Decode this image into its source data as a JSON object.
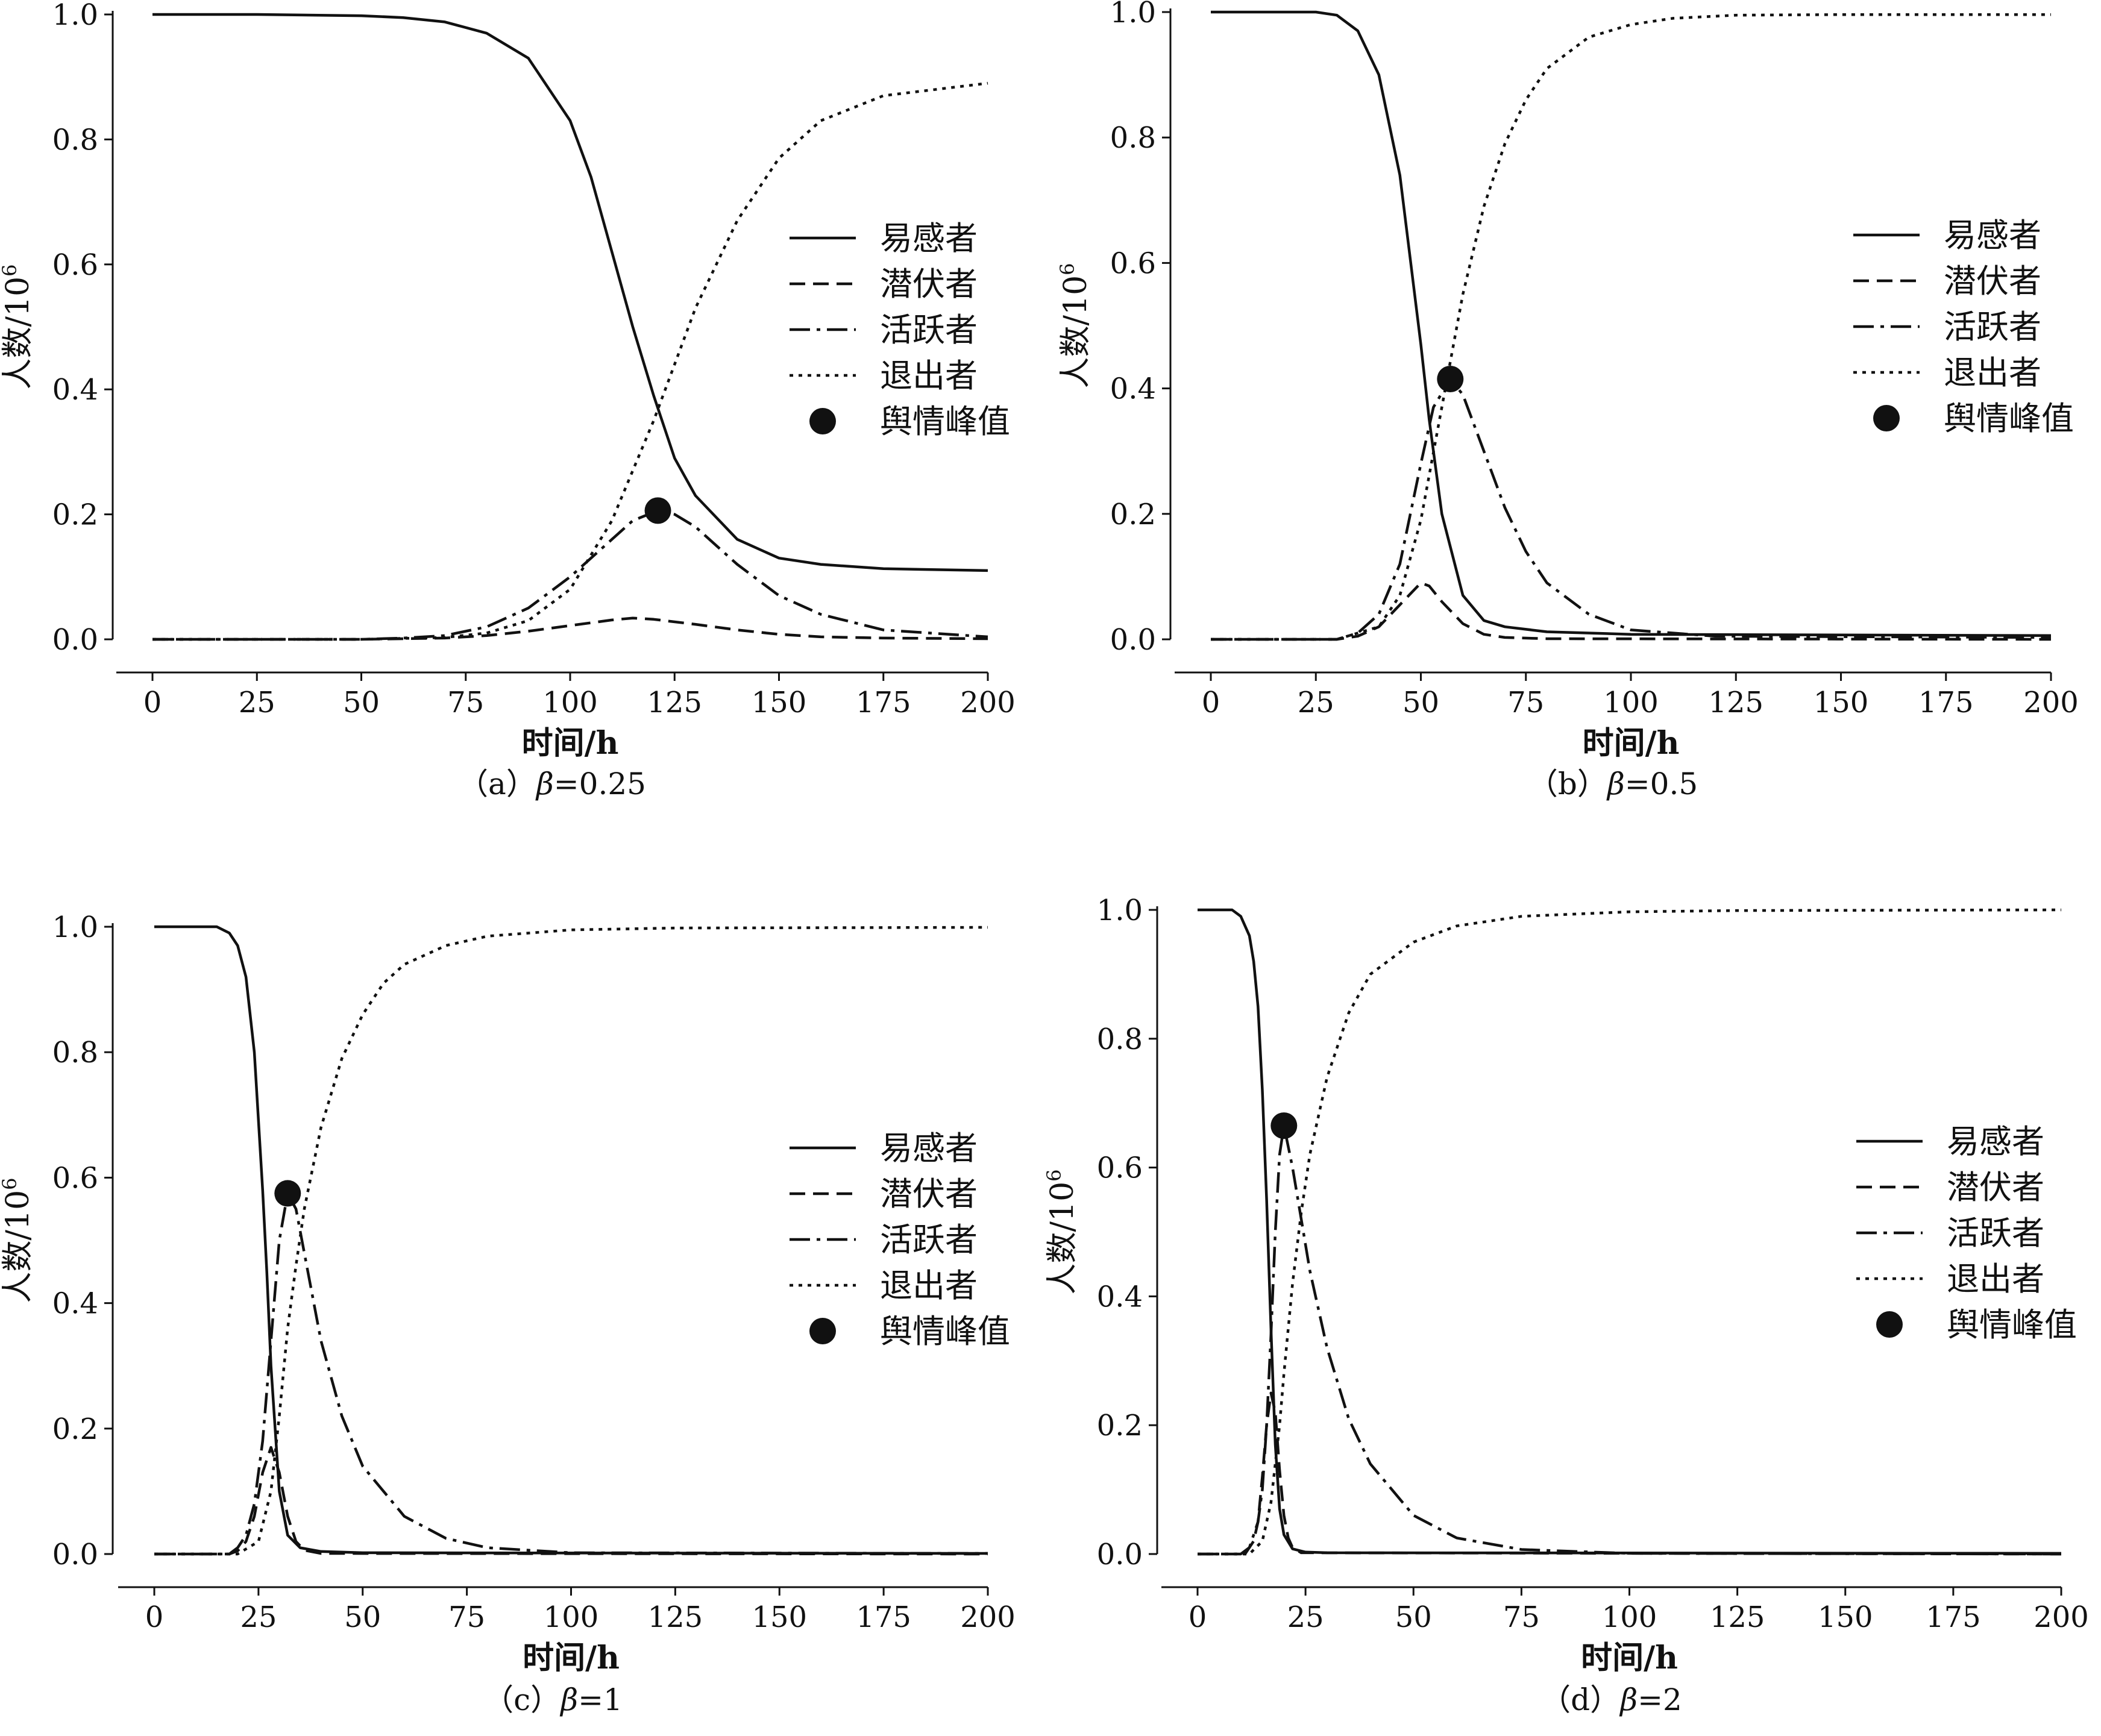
{
  "chart_data": [
    {
      "type": "line",
      "caption": {
        "prefix": "（a）",
        "symbol": "β",
        "value": "=0.25"
      },
      "xlabel": "时间/h",
      "ylabel": "人数/10",
      "ylabel_sup": "6",
      "xlim": [
        0,
        200
      ],
      "ylim": [
        0,
        1.0
      ],
      "xticks": [
        "0",
        "25",
        "50",
        "75",
        "100",
        "125",
        "150",
        "175",
        "200"
      ],
      "yticks": [
        "0.0",
        "0.2",
        "0.4",
        "0.6",
        "0.8",
        "1.0"
      ],
      "legend_position": "right",
      "series": [
        {
          "name": "易感者",
          "style": "solid",
          "x": [
            0,
            25,
            50,
            60,
            70,
            80,
            90,
            100,
            105,
            110,
            115,
            120,
            125,
            130,
            140,
            150,
            160,
            175,
            200
          ],
          "y": [
            1.0,
            1.0,
            0.998,
            0.995,
            0.988,
            0.97,
            0.93,
            0.83,
            0.74,
            0.62,
            0.5,
            0.39,
            0.29,
            0.23,
            0.16,
            0.13,
            0.12,
            0.113,
            0.11
          ]
        },
        {
          "name": "潜伏者",
          "style": "dashed",
          "x": [
            0,
            50,
            70,
            80,
            90,
            100,
            110,
            115,
            120,
            130,
            140,
            150,
            160,
            175,
            200
          ],
          "y": [
            0.0,
            0.0,
            0.002,
            0.006,
            0.013,
            0.022,
            0.031,
            0.034,
            0.032,
            0.024,
            0.015,
            0.008,
            0.004,
            0.002,
            0.001
          ]
        },
        {
          "name": "活跃者",
          "style": "dashdot",
          "x": [
            0,
            50,
            60,
            70,
            80,
            90,
            100,
            110,
            115,
            121,
            125,
            130,
            140,
            150,
            160,
            175,
            200
          ],
          "y": [
            0.0,
            0.0,
            0.002,
            0.006,
            0.02,
            0.05,
            0.1,
            0.16,
            0.19,
            0.206,
            0.2,
            0.18,
            0.12,
            0.07,
            0.04,
            0.015,
            0.004
          ]
        },
        {
          "name": "退出者",
          "style": "dotted",
          "x": [
            0,
            50,
            70,
            80,
            90,
            100,
            110,
            115,
            120,
            125,
            130,
            140,
            150,
            160,
            175,
            200
          ],
          "y": [
            0.0,
            0.0,
            0.003,
            0.01,
            0.03,
            0.08,
            0.19,
            0.27,
            0.35,
            0.44,
            0.53,
            0.67,
            0.77,
            0.83,
            0.87,
            0.89
          ]
        }
      ],
      "peak": {
        "name": "舆情峰值",
        "x": 121,
        "y": 0.206
      }
    },
    {
      "type": "line",
      "caption": {
        "prefix": "（b）",
        "symbol": "β",
        "value": "=0.5"
      },
      "xlabel": "时间/h",
      "ylabel": "人数/10",
      "ylabel_sup": "6",
      "xlim": [
        0,
        200
      ],
      "ylim": [
        0,
        1.0
      ],
      "xticks": [
        "0",
        "25",
        "50",
        "75",
        "100",
        "125",
        "150",
        "175",
        "200"
      ],
      "yticks": [
        "0.0",
        "0.2",
        "0.4",
        "0.6",
        "0.8",
        "1.0"
      ],
      "legend_position": "right",
      "series": [
        {
          "name": "易感者",
          "style": "solid",
          "x": [
            0,
            25,
            30,
            35,
            40,
            45,
            50,
            52,
            55,
            60,
            65,
            70,
            80,
            100,
            200
          ],
          "y": [
            1.0,
            1.0,
            0.995,
            0.97,
            0.9,
            0.74,
            0.47,
            0.35,
            0.2,
            0.07,
            0.03,
            0.02,
            0.012,
            0.008,
            0.006
          ]
        },
        {
          "name": "潜伏者",
          "style": "dashed",
          "x": [
            0,
            30,
            35,
            40,
            45,
            50,
            52,
            55,
            60,
            65,
            70,
            80,
            200
          ],
          "y": [
            0.0,
            0.0,
            0.005,
            0.02,
            0.055,
            0.09,
            0.085,
            0.06,
            0.025,
            0.008,
            0.003,
            0.001,
            0.0
          ]
        },
        {
          "name": "活跃者",
          "style": "dashdot",
          "x": [
            0,
            30,
            35,
            40,
            45,
            50,
            53,
            57,
            60,
            65,
            70,
            75,
            80,
            90,
            100,
            120,
            200
          ],
          "y": [
            0.0,
            0.0,
            0.01,
            0.04,
            0.12,
            0.28,
            0.37,
            0.415,
            0.39,
            0.3,
            0.21,
            0.14,
            0.09,
            0.04,
            0.015,
            0.005,
            0.003
          ]
        },
        {
          "name": "退出者",
          "style": "dotted",
          "x": [
            0,
            30,
            40,
            45,
            50,
            55,
            60,
            65,
            70,
            75,
            80,
            90,
            100,
            110,
            125,
            150,
            200
          ],
          "y": [
            0.0,
            0.0,
            0.02,
            0.07,
            0.19,
            0.37,
            0.55,
            0.69,
            0.79,
            0.86,
            0.91,
            0.96,
            0.98,
            0.99,
            0.995,
            0.996,
            0.996
          ]
        }
      ],
      "peak": {
        "name": "舆情峰值",
        "x": 57,
        "y": 0.415
      }
    },
    {
      "type": "line",
      "caption": {
        "prefix": "（c）",
        "symbol": "β",
        "value": "=1"
      },
      "xlabel": "时间/h",
      "ylabel": "人数/10",
      "ylabel_sup": "6",
      "xlim": [
        0,
        200
      ],
      "ylim": [
        0,
        1.0
      ],
      "xticks": [
        "0",
        "25",
        "50",
        "75",
        "100",
        "125",
        "150",
        "175",
        "200"
      ],
      "yticks": [
        "0.0",
        "0.2",
        "0.4",
        "0.6",
        "0.8",
        "1.0"
      ],
      "legend_position": "right",
      "series": [
        {
          "name": "易感者",
          "style": "solid",
          "x": [
            0,
            15,
            18,
            20,
            22,
            24,
            26,
            27,
            28,
            30,
            32,
            35,
            40,
            50,
            200
          ],
          "y": [
            1.0,
            1.0,
            0.99,
            0.97,
            0.92,
            0.8,
            0.58,
            0.45,
            0.3,
            0.1,
            0.03,
            0.01,
            0.004,
            0.002,
            0.001
          ]
        },
        {
          "name": "潜伏者",
          "style": "dashed",
          "x": [
            0,
            18,
            20,
            22,
            24,
            26,
            28,
            30,
            32,
            34,
            36,
            40,
            200
          ],
          "y": [
            0.0,
            0.0,
            0.005,
            0.02,
            0.06,
            0.13,
            0.17,
            0.13,
            0.06,
            0.02,
            0.006,
            0.001,
            0.0
          ]
        },
        {
          "name": "活跃者",
          "style": "dashdot",
          "x": [
            0,
            18,
            20,
            22,
            24,
            26,
            28,
            30,
            32,
            34,
            36,
            40,
            45,
            50,
            60,
            70,
            80,
            100,
            200
          ],
          "y": [
            0.0,
            0.0,
            0.01,
            0.03,
            0.08,
            0.18,
            0.34,
            0.5,
            0.575,
            0.55,
            0.48,
            0.34,
            0.22,
            0.14,
            0.06,
            0.025,
            0.01,
            0.002,
            0.001
          ]
        },
        {
          "name": "退出者",
          "style": "dotted",
          "x": [
            0,
            20,
            25,
            28,
            30,
            32,
            34,
            36,
            40,
            45,
            50,
            55,
            60,
            70,
            80,
            100,
            125,
            200
          ],
          "y": [
            0.0,
            0.0,
            0.02,
            0.1,
            0.22,
            0.36,
            0.46,
            0.55,
            0.68,
            0.79,
            0.86,
            0.91,
            0.94,
            0.97,
            0.985,
            0.995,
            0.998,
            0.999
          ]
        }
      ],
      "peak": {
        "name": "舆情峰值",
        "x": 32,
        "y": 0.575
      }
    },
    {
      "type": "line",
      "caption": {
        "prefix": "（d）",
        "symbol": "β",
        "value": "=2"
      },
      "xlabel": "时间/h",
      "ylabel": "人数/10",
      "ylabel_sup": "6",
      "xlim": [
        0,
        200
      ],
      "ylim": [
        0,
        1.0
      ],
      "xticks": [
        "0",
        "25",
        "50",
        "75",
        "100",
        "125",
        "150",
        "175",
        "200"
      ],
      "yticks": [
        "0.0",
        "0.2",
        "0.4",
        "0.6",
        "0.8",
        "1.0"
      ],
      "legend_position": "right",
      "series": [
        {
          "name": "易感者",
          "style": "solid",
          "x": [
            0,
            8,
            10,
            12,
            13,
            14,
            15,
            16,
            17,
            18,
            19,
            20,
            22,
            25,
            30,
            200
          ],
          "y": [
            1.0,
            1.0,
            0.99,
            0.96,
            0.92,
            0.85,
            0.72,
            0.55,
            0.35,
            0.17,
            0.07,
            0.03,
            0.008,
            0.003,
            0.002,
            0.001
          ]
        },
        {
          "name": "潜伏者",
          "style": "dashed",
          "x": [
            0,
            11,
            13,
            14,
            15,
            16,
            17,
            18,
            19,
            20,
            21,
            22,
            24,
            200
          ],
          "y": [
            0.0,
            0.0,
            0.02,
            0.05,
            0.12,
            0.2,
            0.25,
            0.22,
            0.13,
            0.06,
            0.025,
            0.01,
            0.002,
            0.0
          ]
        },
        {
          "name": "活跃者",
          "style": "dashdot",
          "x": [
            0,
            10,
            12,
            14,
            15,
            16,
            17,
            18,
            19,
            20,
            22,
            24,
            26,
            30,
            35,
            40,
            50,
            60,
            75,
            100,
            200
          ],
          "y": [
            0.0,
            0.0,
            0.01,
            0.05,
            0.1,
            0.2,
            0.34,
            0.5,
            0.62,
            0.665,
            0.6,
            0.52,
            0.44,
            0.32,
            0.21,
            0.14,
            0.06,
            0.025,
            0.007,
            0.001,
            0.0
          ]
        },
        {
          "name": "退出者",
          "style": "dotted",
          "x": [
            0,
            12,
            15,
            17,
            19,
            20,
            22,
            24,
            26,
            30,
            35,
            40,
            50,
            60,
            75,
            100,
            125,
            200
          ],
          "y": [
            0.0,
            0.0,
            0.02,
            0.08,
            0.2,
            0.28,
            0.42,
            0.53,
            0.62,
            0.74,
            0.84,
            0.9,
            0.95,
            0.975,
            0.99,
            0.997,
            0.999,
            1.0
          ]
        }
      ],
      "peak": {
        "name": "舆情峰值",
        "x": 20,
        "y": 0.665
      }
    }
  ]
}
